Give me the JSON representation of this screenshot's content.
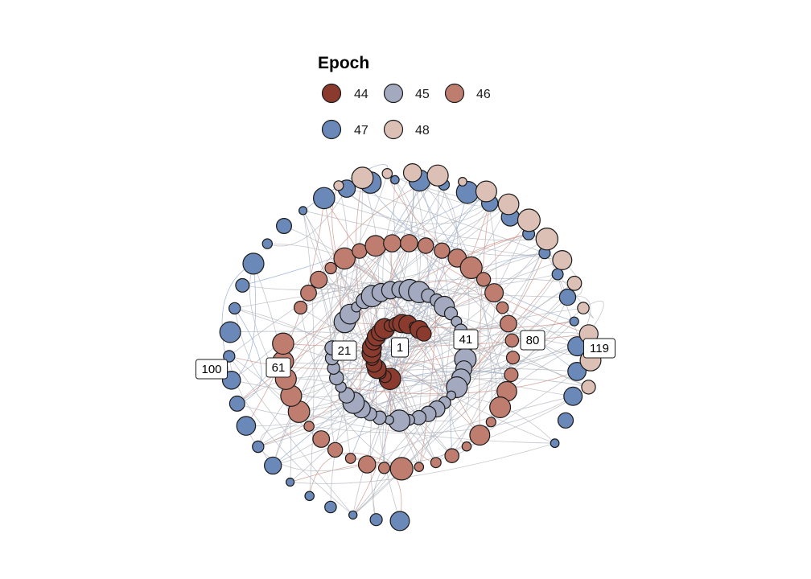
{
  "legend": {
    "title": "Epoch",
    "entries": [
      {
        "label": "44",
        "color": "#8B3A2E"
      },
      {
        "label": "45",
        "color": "#A3A9BE"
      },
      {
        "label": "46",
        "color": "#BF7D6F"
      },
      {
        "label": "47",
        "color": "#6A88B8"
      },
      {
        "label": "48",
        "color": "#DCC0B5"
      }
    ]
  },
  "node_labels": [
    "1",
    "21",
    "41",
    "61",
    "80",
    "100",
    "119"
  ],
  "colors": {
    "edge_default": "#B0B4BC",
    "edge_44": "#C98E83",
    "edge_47": "#8EA6CC",
    "node_stroke": "#1a1a1a"
  }
}
